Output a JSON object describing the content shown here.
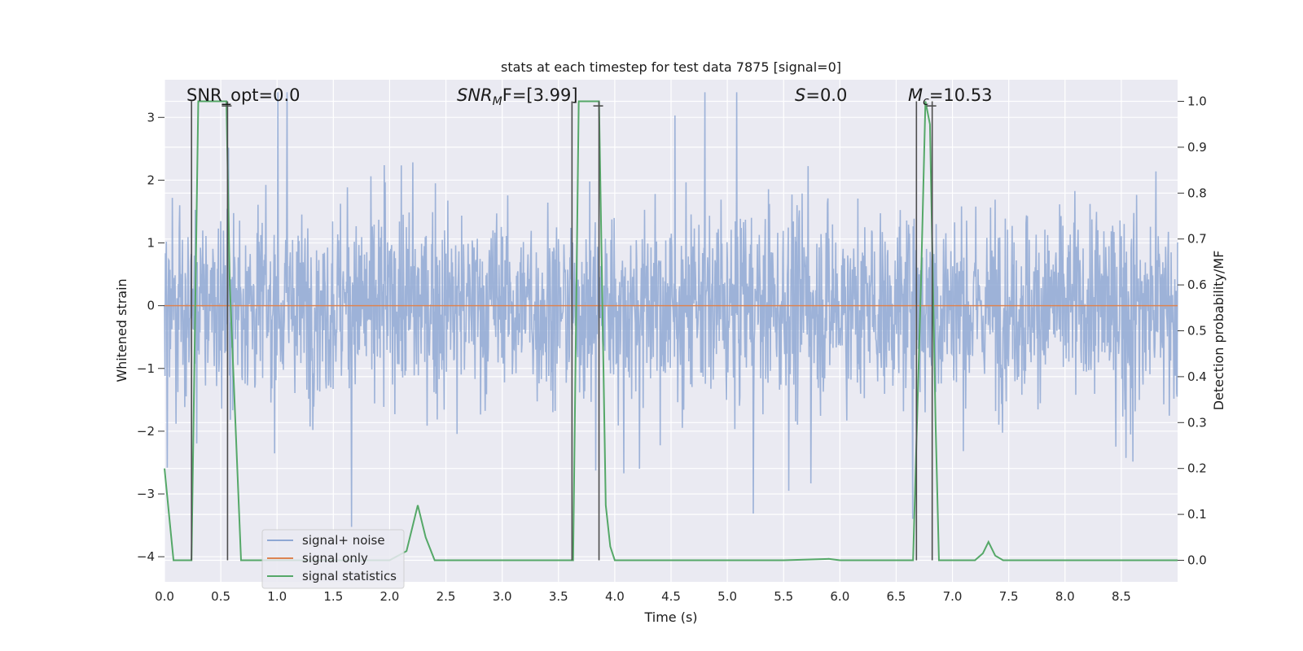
{
  "chart_data": {
    "type": "line",
    "title": "stats at each timestep for test data 7875 [signal=0]",
    "xlabel": "Time (s)",
    "ylabel": "Whitened strain",
    "y2label": "Detection probability/MF",
    "xlim": [
      0,
      9.0
    ],
    "ylim": [
      -4.4,
      3.6
    ],
    "y2lim": [
      -0.047,
      1.047
    ],
    "xticks": [
      "0.0",
      "0.5",
      "1.0",
      "1.5",
      "2.0",
      "2.5",
      "3.0",
      "3.5",
      "4.0",
      "4.5",
      "5.0",
      "5.5",
      "6.0",
      "6.5",
      "7.0",
      "7.5",
      "8.0",
      "8.5"
    ],
    "yticks": [
      "3",
      "2",
      "1",
      "0",
      "−1",
      "−2",
      "−3",
      "−4"
    ],
    "y2ticks": [
      "1.0",
      "0.9",
      "0.8",
      "0.7",
      "0.6",
      "0.5",
      "0.4",
      "0.3",
      "0.2",
      "0.1",
      "0.0"
    ],
    "grid": true,
    "legend_position": "lower-left",
    "annotations": {
      "snr_opt": "SNR_opt=0.0",
      "snr_mf": "SNR",
      "snr_mf_sub": "M",
      "snr_mf_rest": "F=[3.99]",
      "s_label": "S",
      "s_rest": "=0.0",
      "mc_label": "M",
      "mc_sub": "c",
      "mc_rest": "=10.53"
    },
    "series": [
      {
        "name": "signal+ noise",
        "color": "#8fa8d4",
        "description_range": [
          -3.9,
          3.4
        ],
        "seed": 7875,
        "n_points": 2200
      },
      {
        "name": "signal only",
        "color": "#dd8452",
        "x": [
          0,
          9.0
        ],
        "y": [
          0,
          0
        ]
      },
      {
        "name": "signal statistics",
        "color": "#55a868",
        "axis": "right",
        "x": [
          0.0,
          0.08,
          0.24,
          0.3,
          0.55,
          0.58,
          0.68,
          0.8,
          1.0,
          1.5,
          2.0,
          2.15,
          2.25,
          2.32,
          2.4,
          2.6,
          3.0,
          3.5,
          3.6,
          3.63,
          3.68,
          3.72,
          3.86,
          3.92,
          3.96,
          4.0,
          4.5,
          5.0,
          5.5,
          5.9,
          6.0,
          6.5,
          6.65,
          6.72,
          6.76,
          6.8,
          6.85,
          6.88,
          7.0,
          7.2,
          7.27,
          7.32,
          7.38,
          7.45,
          7.6,
          8.0,
          9.0
        ],
        "y": [
          0.2,
          0.0,
          0.0,
          1.0,
          1.0,
          0.6,
          0.0,
          0.0,
          0.0,
          0.0,
          0.0,
          0.02,
          0.12,
          0.05,
          0.0,
          0.0,
          0.0,
          0.0,
          0.0,
          0.0,
          1.0,
          1.0,
          1.0,
          0.12,
          0.03,
          0.0,
          0.0,
          0.0,
          0.0,
          0.003,
          0.0,
          0.0,
          0.0,
          0.6,
          1.0,
          0.95,
          0.3,
          0.0,
          0.0,
          0.0,
          0.015,
          0.04,
          0.01,
          0.0,
          0.0,
          0.0,
          0.0
        ]
      }
    ],
    "vertical_markers": [
      0.24,
      0.56,
      3.62,
      3.86,
      6.68,
      6.82
    ],
    "marker_color": "#4d4d4d"
  }
}
